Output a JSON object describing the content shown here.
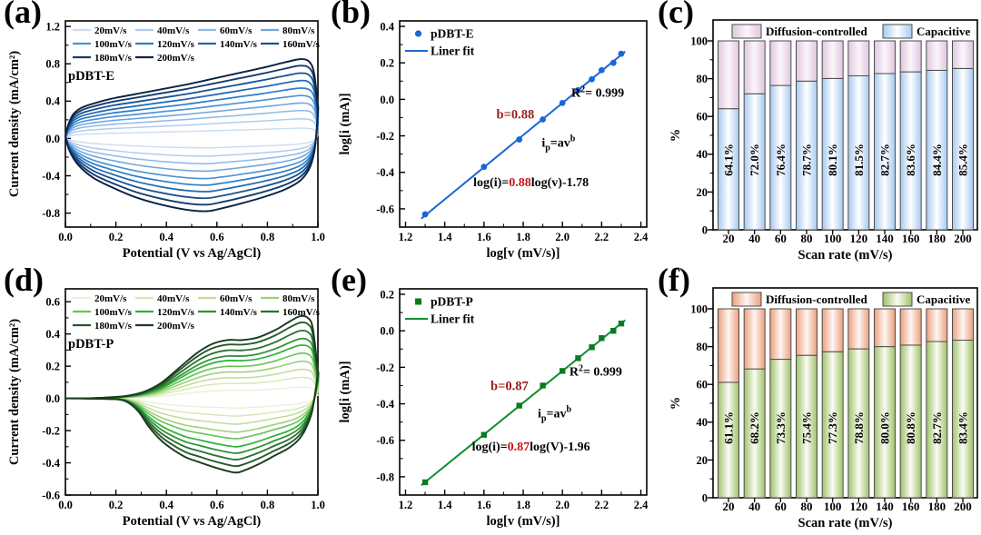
{
  "figure": {
    "background": "#ffffff"
  },
  "chart_data": [
    {
      "id": "a",
      "type": "line",
      "letter": "(a)",
      "sample_label": "pDBT-E",
      "xlabel": "Potential (V vs Ag/AgCl)",
      "ylabel": "Current density (mA/cm²)",
      "xlim": [
        0.0,
        1.0
      ],
      "ylim": [
        1.26,
        -0.95
      ],
      "xticks": [
        "0.0",
        "0.2",
        "0.4",
        "0.6",
        "0.8",
        "1.0"
      ],
      "yticks": [
        {
          "v": 1.2,
          "t": "1.2"
        },
        {
          "v": 0.8,
          "t": "0.8"
        },
        {
          "v": 0.4,
          "t": "0.4"
        },
        {
          "v": 0.0,
          "t": "0.0"
        },
        {
          "v": -0.4,
          "t": "-0.4"
        },
        {
          "v": -0.8,
          "t": "-0.8"
        }
      ],
      "series": [
        {
          "label": "20mV/s",
          "color": "#cbdcf3",
          "anodic_peak": 0.11,
          "cathodic_peak": -0.1
        },
        {
          "label": "40mV/s",
          "color": "#aecbed",
          "anodic_peak": 0.21,
          "cathodic_peak": -0.19
        },
        {
          "label": "60mV/s",
          "color": "#8fb9e5",
          "anodic_peak": 0.3,
          "cathodic_peak": -0.27
        },
        {
          "label": "80mV/s",
          "color": "#6fa6dd",
          "anodic_peak": 0.38,
          "cathodic_peak": -0.35
        },
        {
          "label": "100mV/s",
          "color": "#4d92d5",
          "anodic_peak": 0.46,
          "cathodic_peak": -0.43
        },
        {
          "label": "120mV/s",
          "color": "#2c7cc9",
          "anodic_peak": 0.54,
          "cathodic_peak": -0.5
        },
        {
          "label": "140mV/s",
          "color": "#2368b2",
          "anodic_peak": 0.62,
          "cathodic_peak": -0.57
        },
        {
          "label": "160mV/s",
          "color": "#1b5292",
          "anodic_peak": 0.7,
          "cathodic_peak": -0.64
        },
        {
          "label": "180mV/s",
          "color": "#143c6c",
          "anodic_peak": 0.78,
          "cathodic_peak": -0.71
        },
        {
          "label": "200mV/s",
          "color": "#0b2343",
          "anodic_peak": 0.85,
          "cathodic_peak": -0.78
        }
      ]
    },
    {
      "id": "b",
      "type": "scatter",
      "letter": "(b)",
      "marker": "circle",
      "legend": {
        "point_label": "pDBT-E",
        "line_label": "Liner fit"
      },
      "xlabel": "log[v (mV/s)]",
      "ylabel": "log[i (mA)]",
      "xlim": [
        1.17,
        2.43
      ],
      "ylim": [
        0.43,
        -0.7
      ],
      "xticks": [
        "1.2",
        "1.4",
        "1.6",
        "1.8",
        "2.0",
        "2.2",
        "2.4"
      ],
      "yticks": [
        {
          "v": 0.4,
          "t": "0.4"
        },
        {
          "v": 0.2,
          "t": "0.2"
        },
        {
          "v": 0.0,
          "t": "0.0"
        },
        {
          "v": -0.2,
          "t": "-0.2"
        },
        {
          "v": -0.4,
          "t": "-0.4"
        },
        {
          "v": -0.6,
          "t": "-0.6"
        }
      ],
      "x": [
        1.3,
        1.6,
        1.78,
        1.9,
        2.0,
        2.08,
        2.15,
        2.2,
        2.26,
        2.3
      ],
      "y": [
        -0.63,
        -0.37,
        -0.22,
        -0.11,
        -0.02,
        0.05,
        0.11,
        0.16,
        0.2,
        0.25
      ],
      "fit": {
        "slope": 0.88,
        "intercept": -1.78,
        "x_start": 1.28,
        "x_end": 2.32
      },
      "annotations": {
        "b_label": "b=0.88",
        "b_pos": [
          1.76,
          -0.105
        ],
        "r2_main": "R",
        "r2_sup": "2",
        "r2_rest": "= 0.999",
        "r2_pos": [
          2.18,
          0.015
        ],
        "model_main": "i",
        "model_sub": "p",
        "model_mid": "=av",
        "model_sup": "b",
        "model_pos": [
          1.98,
          -0.26
        ],
        "eq_pre": "log(i)=",
        "eq_coef": "0.88",
        "eq_post": "log(v)-1.78",
        "eq_pos": [
          1.84,
          -0.475
        ]
      },
      "colors": {
        "line": "#1a66d9",
        "marker": "#1a66d9",
        "dark_red": "#9b1a1a",
        "coef_red": "#c41414"
      }
    },
    {
      "id": "c",
      "type": "bar",
      "letter": "(c)",
      "legend": [
        "Diffusion-controlled",
        "Capacitive"
      ],
      "xlabel": "Scan rate (mV/s)",
      "ylabel": "%",
      "categories": [
        "20",
        "40",
        "60",
        "80",
        "100",
        "120",
        "140",
        "160",
        "180",
        "200"
      ],
      "capacitive_pct": [
        64.1,
        72.0,
        76.4,
        78.7,
        80.1,
        81.5,
        82.7,
        83.6,
        84.4,
        85.4
      ],
      "bar_labels": [
        "64.1%",
        "72.0%",
        "76.4%",
        "78.7%",
        "80.1%",
        "81.5%",
        "82.7%",
        "83.6%",
        "84.4%",
        "85.4%"
      ],
      "yticks": [
        0,
        20,
        40,
        60,
        80,
        100
      ],
      "ylim": [
        0,
        100
      ],
      "colors": {
        "top_edge": "#dfc6dd",
        "top_center": "#fbf6fb",
        "bottom_edge": "#a6c9f0",
        "bottom_center": "#ffffff",
        "border": "#4d4d4d"
      }
    },
    {
      "id": "d",
      "type": "line",
      "letter": "(d)",
      "sample_label": "pDBT-P",
      "xlabel": "Potential (V vs Ag/AgCl)",
      "ylabel": "Current density (mA/cm²)",
      "xlim": [
        0.0,
        1.0
      ],
      "ylim": [
        0.68,
        -0.6
      ],
      "xticks": [
        "0.0",
        "0.2",
        "0.4",
        "0.6",
        "0.8",
        "1.0"
      ],
      "yticks": [
        {
          "v": 0.6,
          "t": "0.6"
        },
        {
          "v": 0.4,
          "t": "0.4"
        },
        {
          "v": 0.2,
          "t": "0.2"
        },
        {
          "v": 0.0,
          "t": "0.0"
        },
        {
          "v": -0.2,
          "t": "-0.2"
        },
        {
          "v": -0.4,
          "t": "-0.4"
        },
        {
          "v": -0.6,
          "t": "-0.6"
        }
      ],
      "series": [
        {
          "label": "20mV/s",
          "color": "#edf0d5",
          "anodic_peak": 0.07,
          "cathodic_peak": -0.06
        },
        {
          "label": "40mV/s",
          "color": "#d9e7b6",
          "anodic_peak": 0.13,
          "cathodic_peak": -0.11
        },
        {
          "label": "60mV/s",
          "color": "#bfdc98",
          "anodic_peak": 0.18,
          "cathodic_peak": -0.16
        },
        {
          "label": "80mV/s",
          "color": "#9cd078",
          "anodic_peak": 0.23,
          "cathodic_peak": -0.21
        },
        {
          "label": "100mV/s",
          "color": "#68c457",
          "anodic_peak": 0.28,
          "cathodic_peak": -0.25
        },
        {
          "label": "120mV/s",
          "color": "#2bb236",
          "anodic_peak": 0.33,
          "cathodic_peak": -0.3
        },
        {
          "label": "140mV/s",
          "color": "#2f9038",
          "anodic_peak": 0.37,
          "cathodic_peak": -0.34
        },
        {
          "label": "160mV/s",
          "color": "#2a7031",
          "anodic_peak": 0.42,
          "cathodic_peak": -0.38
        },
        {
          "label": "180mV/s",
          "color": "#265929",
          "anodic_peak": 0.47,
          "cathodic_peak": -0.42
        },
        {
          "label": "200mV/s",
          "color": "#1a3c1f",
          "anodic_peak": 0.51,
          "cathodic_peak": -0.46
        }
      ]
    },
    {
      "id": "e",
      "type": "scatter",
      "letter": "(e)",
      "marker": "square",
      "legend": {
        "point_label": "pDBT-P",
        "line_label": "Liner fit"
      },
      "xlabel": "log[v (mV/s)]",
      "ylabel": "log[i (mA)]",
      "xlim": [
        1.17,
        2.43
      ],
      "ylim": [
        0.23,
        -0.9
      ],
      "xticks": [
        "1.2",
        "1.4",
        "1.6",
        "1.8",
        "2.0",
        "2.2",
        "2.4"
      ],
      "yticks": [
        {
          "v": 0.2,
          "t": "0.2"
        },
        {
          "v": 0.0,
          "t": "0.0"
        },
        {
          "v": -0.2,
          "t": "-0.2"
        },
        {
          "v": -0.4,
          "t": "-0.4"
        },
        {
          "v": -0.6,
          "t": "-0.6"
        },
        {
          "v": -0.8,
          "t": "-0.8"
        }
      ],
      "x": [
        1.3,
        1.6,
        1.78,
        1.9,
        2.0,
        2.08,
        2.15,
        2.2,
        2.26,
        2.3
      ],
      "y": [
        -0.83,
        -0.57,
        -0.41,
        -0.3,
        -0.22,
        -0.15,
        -0.09,
        -0.04,
        0.0,
        0.04
      ],
      "fit": {
        "slope": 0.87,
        "intercept": -1.96,
        "x_start": 1.28,
        "x_end": 2.32
      },
      "annotations": {
        "b_label": "b=0.87",
        "b_pos": [
          1.73,
          -0.325
        ],
        "r2_main": "R",
        "r2_sup": "2",
        "r2_rest": "= 0.999",
        "r2_pos": [
          2.17,
          -0.245
        ],
        "model_main": "i",
        "model_sub": "p",
        "model_mid": "=av",
        "model_sup": "b",
        "model_pos": [
          1.96,
          -0.475
        ],
        "eq_pre": "log(i)=",
        "eq_coef": "0.87",
        "eq_post": "log(V)-1.96",
        "eq_pos": [
          1.84,
          -0.655
        ]
      },
      "colors": {
        "line": "#0f9030",
        "marker": "#0d7a22",
        "dark_red": "#9b1a1a",
        "coef_red": "#c41414"
      }
    },
    {
      "id": "f",
      "type": "bar",
      "letter": "(f)",
      "legend": [
        "Diffusion-controlled",
        "Capacitive"
      ],
      "xlabel": "Scan rate (mV/s)",
      "ylabel": "%",
      "categories": [
        "20",
        "40",
        "60",
        "80",
        "100",
        "120",
        "140",
        "160",
        "180",
        "200"
      ],
      "capacitive_pct": [
        61.1,
        68.2,
        73.3,
        75.4,
        77.3,
        78.8,
        80.0,
        80.8,
        82.7,
        83.4
      ],
      "bar_labels": [
        "61.1%",
        "68.2%",
        "73.3%",
        "75.4%",
        "77.3%",
        "78.8%",
        "80.0%",
        "80.8%",
        "82.7%",
        "83.4%"
      ],
      "yticks": [
        0,
        20,
        40,
        60,
        80,
        100
      ],
      "ylim": [
        0,
        100
      ],
      "colors": {
        "top_edge": "#eb9f7d",
        "top_center": "#fdf6f2",
        "bottom_edge": "#9fc167",
        "bottom_center": "#fafcf5",
        "border": "#4d4d4d"
      }
    }
  ]
}
